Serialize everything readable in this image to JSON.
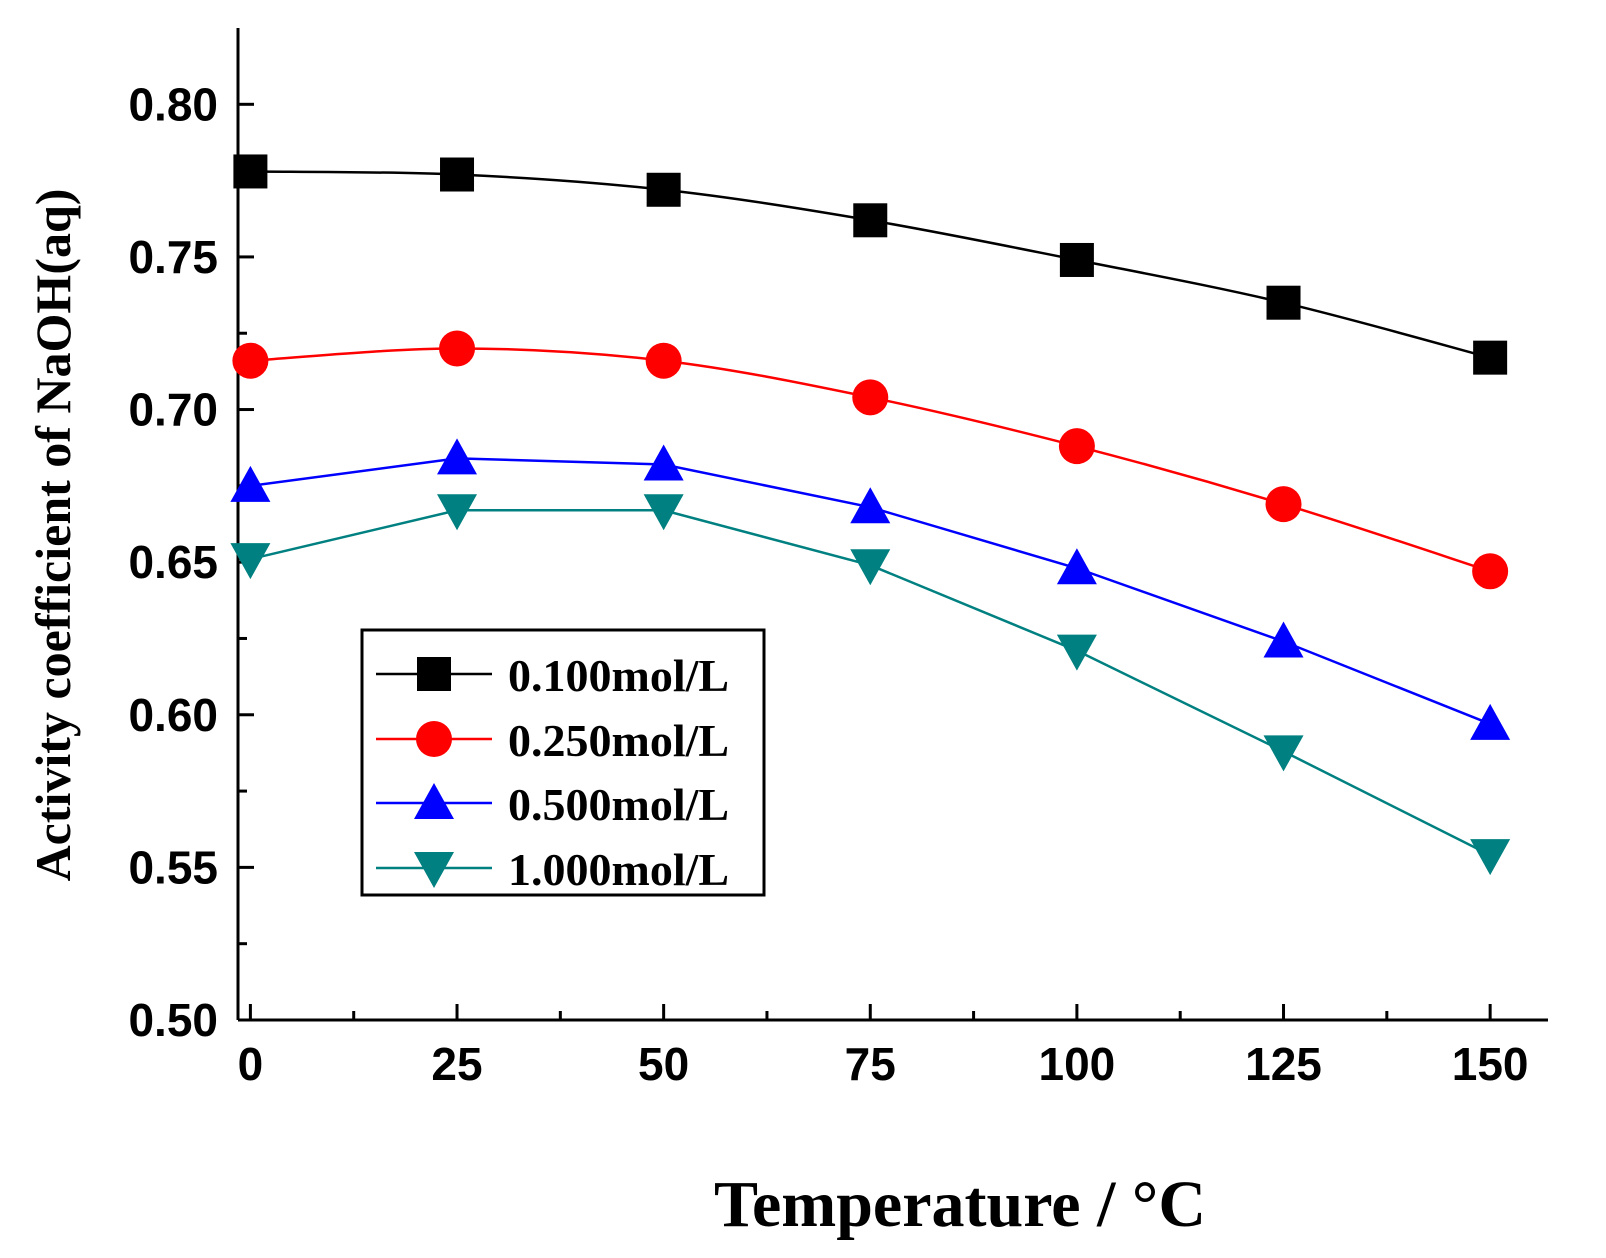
{
  "chart_data": {
    "type": "line",
    "title": "",
    "xlabel": "Temperature / °C",
    "ylabel": "Activity coefficient of NaOH(aq)",
    "x": [
      0,
      25,
      50,
      75,
      100,
      125,
      150
    ],
    "xlim": [
      -1.5,
      157
    ],
    "ylim": [
      0.5,
      0.825
    ],
    "xticks": [
      0,
      25,
      50,
      75,
      100,
      125,
      150
    ],
    "xtick_labels": [
      "0",
      "25",
      "50",
      "75",
      "100",
      "125",
      "150"
    ],
    "yticks": [
      0.5,
      0.55,
      0.6,
      0.65,
      0.7,
      0.75,
      0.8
    ],
    "ytick_labels": [
      "0.50",
      "0.55",
      "0.60",
      "0.65",
      "0.70",
      "0.75",
      "0.80"
    ],
    "grid": false,
    "legend_position": "center-left",
    "series": [
      {
        "name": "0.100mol/L",
        "values": [
          0.778,
          0.777,
          0.772,
          0.762,
          0.749,
          0.735,
          0.717
        ],
        "color": "#000000",
        "marker": "square"
      },
      {
        "name": "0.250mol/L",
        "values": [
          0.716,
          0.72,
          0.716,
          0.704,
          0.688,
          0.669,
          0.647
        ],
        "color": "#ff0000",
        "marker": "circle"
      },
      {
        "name": "0.500mol/L",
        "values": [
          0.675,
          0.684,
          0.682,
          0.668,
          0.648,
          0.624,
          0.597
        ],
        "color": "#0000ff",
        "marker": "triangle-up"
      },
      {
        "name": "1.000mol/L",
        "values": [
          0.651,
          0.667,
          0.667,
          0.649,
          0.621,
          0.588,
          0.554
        ],
        "color": "#008080",
        "marker": "triangle-down"
      }
    ]
  }
}
